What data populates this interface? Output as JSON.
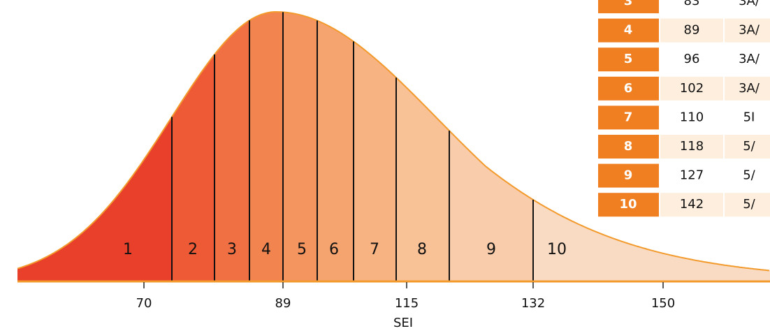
{
  "chart": {
    "deciles": [
      "1",
      "2",
      "3",
      "4",
      "5",
      "6",
      "7",
      "8",
      "9",
      "10"
    ],
    "xticks": [
      70,
      89,
      115,
      132,
      150
    ],
    "xlabel": "SEI"
  },
  "table": {
    "rows": [
      [
        "3",
        "83",
        "3A/"
      ],
      [
        "4",
        "89",
        "3A/"
      ],
      [
        "5",
        "96",
        "3A/"
      ],
      [
        "6",
        "102",
        "3A/"
      ],
      [
        "7",
        "110",
        "5I"
      ],
      [
        "8",
        "118",
        "5/"
      ],
      [
        "9",
        "127",
        "5/"
      ],
      [
        "10",
        "142",
        "5/"
      ]
    ]
  }
}
